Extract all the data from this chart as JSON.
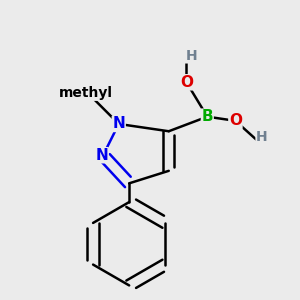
{
  "background_color": "#ebebeb",
  "bond_color": "#000000",
  "bond_width": 1.8,
  "atom_colors": {
    "N": "#0000ee",
    "B": "#00aa00",
    "O": "#dd0000",
    "H": "#708090",
    "C": "#000000"
  },
  "font_size_atom": 11,
  "font_size_H": 10,
  "font_size_methyl": 10
}
